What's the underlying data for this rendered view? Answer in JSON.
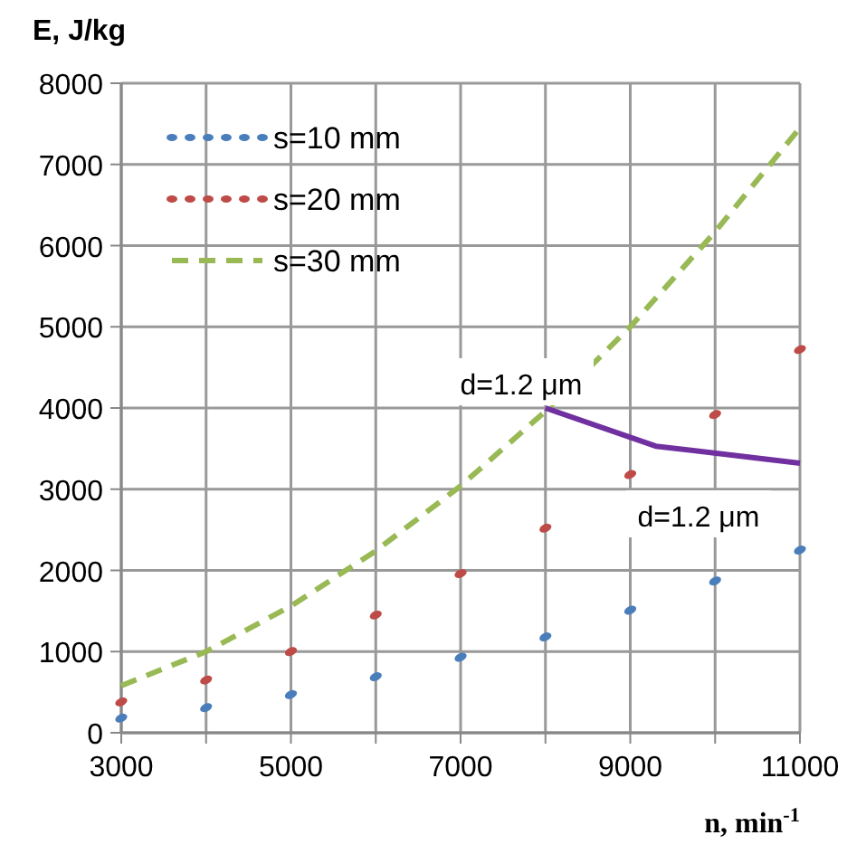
{
  "chart_data": {
    "type": "line",
    "xlabel": "n, min$^{-1}$",
    "ylabel": "E, J/kg",
    "xlim": [
      3000,
      11000
    ],
    "xticks": [
      3000,
      {
        "value": 4000,
        "label": null
      },
      5000,
      {
        "value": 6000,
        "label": null
      },
      7000,
      {
        "value": 8000,
        "label": null
      },
      9000,
      {
        "value": 10000,
        "label": null
      },
      11000
    ],
    "ylim": [
      0,
      8000
    ],
    "yticks": [
      0,
      1000,
      2000,
      3000,
      4000,
      5000,
      6000,
      7000,
      8000
    ],
    "grid": true,
    "legend": "top left",
    "series": [
      {
        "name": "s=10 mm",
        "type": "scatter",
        "marker": "circle",
        "color": "#4a7ebb",
        "x": [
          3000,
          4000,
          5000,
          6000,
          7000,
          8000,
          9000,
          10000,
          11000
        ],
        "values": [
          180,
          310,
          470,
          690,
          930,
          1180,
          1510,
          1870,
          2250
        ]
      },
      {
        "name": "s=20 mm",
        "type": "scatter",
        "marker": "circle",
        "color": "#be4b48",
        "x": [
          3000,
          4000,
          5000,
          6000,
          7000,
          8000,
          9000,
          10000,
          11000
        ],
        "values": [
          380,
          650,
          1000,
          1450,
          1960,
          2520,
          3180,
          3920,
          4720
        ]
      },
      {
        "name": "s=30 mm",
        "line_style": "dashed",
        "color": "#98b954",
        "x": [
          3000,
          4000,
          5000,
          6000,
          7000,
          8000,
          9000,
          10000,
          11000
        ],
        "values": [
          580,
          1000,
          1560,
          2240,
          3040,
          3960,
          5000,
          6170,
          7450
        ]
      },
      {
        "line_style": "solid",
        "color": "#7030a0",
        "x": [
          8000,
          9300,
          11000
        ],
        "values": [
          4000,
          3530,
          3320
        ]
      }
    ],
    "annotations": [
      "d=1.2 μm",
      "d=1.2 μm"
    ]
  }
}
